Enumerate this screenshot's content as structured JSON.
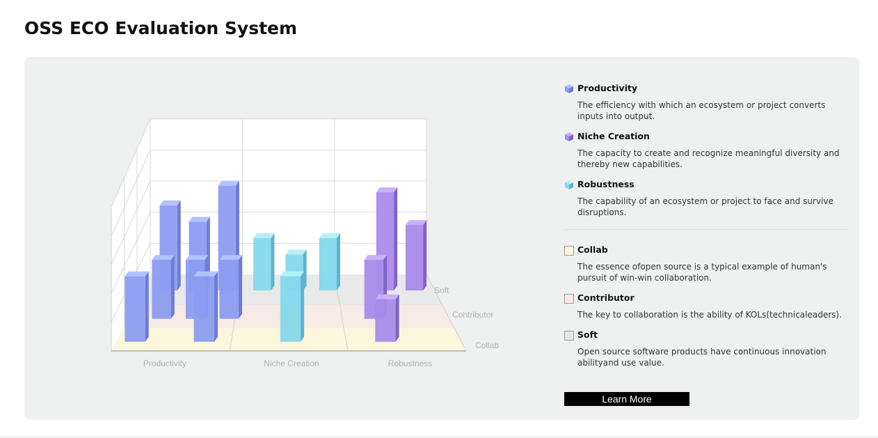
{
  "page": {
    "title": "OSS ECO Evaluation System"
  },
  "legend": {
    "categories": [
      {
        "title": "Productivity",
        "description": "The efficiency with which an ecosystem or project converts inputs into output.",
        "icon": "cube-blue-icon",
        "color": "#8c9cf0"
      },
      {
        "title": "Niche Creation",
        "description": "The capacity to create and recognize meaningful diversity and thereby new capabilities.",
        "icon": "cube-purple-icon",
        "color": "#a98bea"
      },
      {
        "title": "Robustness",
        "description": "The capability of an ecosystem or project to face and survive disruptions.",
        "icon": "cube-cyan-icon",
        "color": "#86d8ec"
      }
    ],
    "dimensions": [
      {
        "title": "Collab",
        "description": "The essence ofopen source is a typical example of human's pursuit of win-win collaboration.",
        "color": "#fdf7d8"
      },
      {
        "title": "Contributor",
        "description": "The key to collaboration is the ability of KOLs(technicaleaders).",
        "color": "#f9e9e2"
      },
      {
        "title": "Soft",
        "description": "Open source software products have continuous innovation abilityand use value.",
        "color": "#e6e7e7"
      }
    ]
  },
  "button": {
    "learn_more": "Learn More"
  },
  "chart_data": {
    "type": "bar",
    "subtype": "3d-grouped",
    "categories": [
      "Productivity",
      "Niche Creation",
      "Robustness"
    ],
    "depth_categories": [
      "Collab",
      "Contributor",
      "Soft"
    ],
    "grid": true,
    "ylim": [
      0,
      5
    ],
    "series": [
      {
        "depth": "Collab",
        "values": [
          {
            "category": "Productivity",
            "group": "Productivity",
            "value": 2
          },
          {
            "category": "Productivity",
            "group": "Productivity",
            "value": 2
          },
          {
            "category": "Niche Creation",
            "group": "Robustness",
            "value": 2
          },
          {
            "category": "Robustness",
            "group": "Niche Creation",
            "value": 1.3
          }
        ]
      },
      {
        "depth": "Contributor",
        "values": [
          {
            "category": "Productivity",
            "group": "Productivity",
            "value": 1.8
          },
          {
            "category": "Productivity",
            "group": "Productivity",
            "value": 1.8
          },
          {
            "category": "Productivity",
            "group": "Productivity",
            "value": 1.8
          },
          {
            "category": "Robustness",
            "group": "Niche Creation",
            "value": 1.8
          }
        ]
      },
      {
        "depth": "Soft",
        "values": [
          {
            "category": "Productivity",
            "group": "Productivity",
            "value": 2.6
          },
          {
            "category": "Productivity",
            "group": "Productivity",
            "value": 2.1
          },
          {
            "category": "Productivity",
            "group": "Productivity",
            "value": 3.2
          },
          {
            "category": "Niche Creation",
            "group": "Robustness",
            "value": 1.6
          },
          {
            "category": "Niche Creation",
            "group": "Robustness",
            "value": 1.1
          },
          {
            "category": "Niche Creation",
            "group": "Robustness",
            "value": 1.6
          },
          {
            "category": "Robustness",
            "group": "Niche Creation",
            "value": 3.0
          },
          {
            "category": "Robustness",
            "group": "Niche Creation",
            "value": 2.0
          }
        ]
      }
    ]
  }
}
